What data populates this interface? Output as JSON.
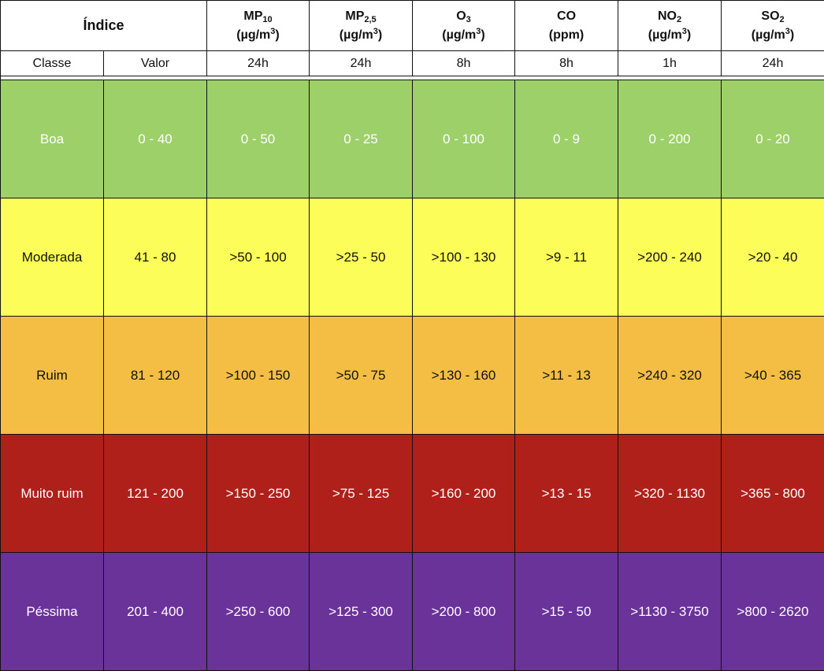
{
  "header": {
    "indice_title": "Índice",
    "classe_label": "Classe",
    "valor_label": "Valor",
    "pollutants": [
      {
        "name": "MP",
        "sub": "10",
        "unit_pre": "(µg/m",
        "unit_sup": "3",
        "unit_post": ")",
        "period": "24h"
      },
      {
        "name": "MP",
        "sub": "2,5",
        "unit_pre": "(µg/m",
        "unit_sup": "3",
        "unit_post": ")",
        "period": "24h"
      },
      {
        "name": "O",
        "sub": "3",
        "unit_pre": "(µg/m",
        "unit_sup": "3",
        "unit_post": ")",
        "period": "8h"
      },
      {
        "name": "CO",
        "sub": "",
        "unit_pre": "(ppm)",
        "unit_sup": "",
        "unit_post": "",
        "period": "8h"
      },
      {
        "name": "NO",
        "sub": "2",
        "unit_pre": "(µg/m",
        "unit_sup": "3",
        "unit_post": ")",
        "period": "1h"
      },
      {
        "name": "SO",
        "sub": "2",
        "unit_pre": "(µg/m",
        "unit_sup": "3",
        "unit_post": ")",
        "period": "24h"
      }
    ]
  },
  "rows": [
    {
      "classe": "Boa",
      "valor": "0 - 40",
      "values": [
        "0 - 50",
        "0 - 25",
        "0 - 100",
        "0 - 9",
        "0 - 200",
        "0 - 20"
      ],
      "bg": "#9dd069",
      "fg": "#ffffff"
    },
    {
      "classe": "Moderada",
      "valor": "41 - 80",
      "values": [
        ">50 - 100",
        ">25 - 50",
        ">100 - 130",
        ">9 - 11",
        ">200 - 240",
        ">20 - 40"
      ],
      "bg": "#fdfd5a",
      "fg": "#111111"
    },
    {
      "classe": "Ruim",
      "valor": "81 - 120",
      "values": [
        ">100 - 150",
        ">50 - 75",
        ">130 - 160",
        ">11 - 13",
        ">240 - 320",
        ">40 - 365"
      ],
      "bg": "#f4be45",
      "fg": "#111111"
    },
    {
      "classe": "Muito ruim",
      "valor": "121 - 200",
      "values": [
        ">150 - 250",
        ">75 - 125",
        ">160 - 200",
        ">13 - 15",
        ">320 - 1130",
        ">365 - 800"
      ],
      "bg": "#b0201b",
      "fg": "#ffffff"
    },
    {
      "classe": "Péssima",
      "valor": "201 - 400",
      "values": [
        ">250 - 600",
        ">125 - 300",
        ">200 - 800",
        ">15 - 50",
        ">1130 - 3750",
        ">800 - 2620"
      ],
      "bg": "#6a339a",
      "fg": "#ffffff"
    }
  ]
}
